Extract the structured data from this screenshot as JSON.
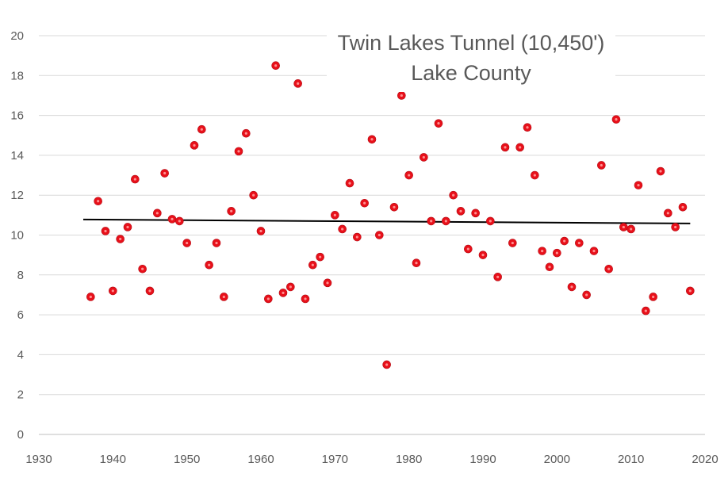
{
  "chart_data": {
    "type": "scatter",
    "title": [
      "Twin Lakes Tunnel (10,450')",
      "Lake County"
    ],
    "xlim": [
      1930,
      2020
    ],
    "ylim": [
      0,
      20
    ],
    "x_ticks": [
      1930,
      1940,
      1950,
      1960,
      1970,
      1980,
      1990,
      2000,
      2010,
      2020
    ],
    "y_ticks": [
      0,
      2,
      4,
      6,
      8,
      10,
      12,
      14,
      16,
      18,
      20
    ],
    "grid": "horizontal",
    "legend": "none",
    "colors": {
      "points": "#e8101a",
      "trend": "#000000",
      "grid": "#d9d9d9",
      "text": "#595959"
    },
    "series": [
      {
        "x": [
          1937,
          1938,
          1939,
          1940,
          1941,
          1942,
          1943,
          1944,
          1945,
          1946,
          1947,
          1948,
          1949,
          1950,
          1951,
          1952,
          1953,
          1954,
          1955,
          1956,
          1957,
          1958,
          1959,
          1960,
          1961,
          1962,
          1963,
          1964,
          1965,
          1966,
          1967,
          1968,
          1969,
          1970,
          1971,
          1972,
          1973,
          1974,
          1975,
          1976,
          1977,
          1978,
          1979,
          1980,
          1981,
          1982,
          1983,
          1984,
          1985,
          1986,
          1987,
          1988,
          1989,
          1990,
          1991,
          1992,
          1993,
          1994,
          1995,
          1996,
          1997,
          1998,
          1999,
          2000,
          2001,
          2002,
          2003,
          2004,
          2005,
          2006,
          2007,
          2008,
          2009,
          2010,
          2011,
          2012,
          2013,
          2014,
          2015,
          2016,
          2017,
          2018
        ],
        "y": [
          6.9,
          11.7,
          10.2,
          7.2,
          9.8,
          10.4,
          12.8,
          8.3,
          7.2,
          11.1,
          13.1,
          10.8,
          10.7,
          9.6,
          14.5,
          15.3,
          8.5,
          9.6,
          6.9,
          11.2,
          14.2,
          15.1,
          12.0,
          10.2,
          6.8,
          18.5,
          7.1,
          7.4,
          17.6,
          6.8,
          8.5,
          8.9,
          7.6,
          11.0,
          10.3,
          12.6,
          9.9,
          11.6,
          14.8,
          10.0,
          3.5,
          11.4,
          17.0,
          13.0,
          8.6,
          13.9,
          10.7,
          15.6,
          10.7,
          12.0,
          11.2,
          9.3,
          11.1,
          9.0,
          10.7,
          7.9,
          14.4,
          9.6,
          14.4,
          15.4,
          13.0,
          9.2,
          8.4,
          9.1,
          9.7,
          7.4,
          9.6,
          7.0,
          9.2,
          13.5,
          8.3,
          15.8,
          10.4,
          10.3,
          12.5,
          6.2,
          6.9,
          13.2,
          11.1,
          10.4,
          11.4,
          7.2
        ]
      }
    ],
    "trendline": {
      "x": [
        1936,
        2018
      ],
      "y": [
        10.78,
        10.58
      ]
    }
  }
}
